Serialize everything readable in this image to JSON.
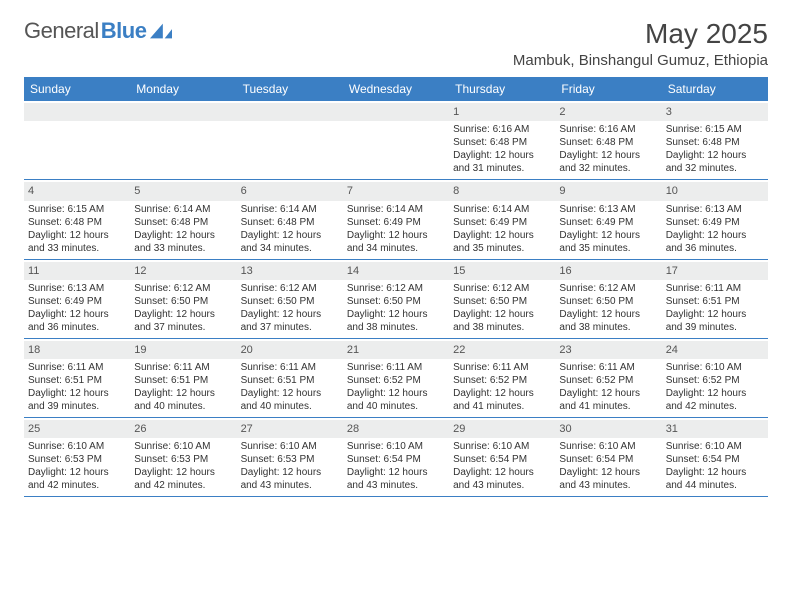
{
  "brand": {
    "part1": "General",
    "part2": "Blue"
  },
  "title": "May 2025",
  "location": "Mambuk, Binshangul Gumuz, Ethiopia",
  "day_labels": [
    "Sunday",
    "Monday",
    "Tuesday",
    "Wednesday",
    "Thursday",
    "Friday",
    "Saturday"
  ],
  "colors": {
    "header_bg": "#3b7fc4",
    "header_text": "#ffffff",
    "daynum_bg": "#eceded",
    "text": "#333333",
    "rule": "#3b7fc4"
  },
  "weeks": [
    [
      {
        "n": "",
        "sr": "",
        "ss": "",
        "dl1": "",
        "dl2": ""
      },
      {
        "n": "",
        "sr": "",
        "ss": "",
        "dl1": "",
        "dl2": ""
      },
      {
        "n": "",
        "sr": "",
        "ss": "",
        "dl1": "",
        "dl2": ""
      },
      {
        "n": "",
        "sr": "",
        "ss": "",
        "dl1": "",
        "dl2": ""
      },
      {
        "n": "1",
        "sr": "Sunrise: 6:16 AM",
        "ss": "Sunset: 6:48 PM",
        "dl1": "Daylight: 12 hours",
        "dl2": "and 31 minutes."
      },
      {
        "n": "2",
        "sr": "Sunrise: 6:16 AM",
        "ss": "Sunset: 6:48 PM",
        "dl1": "Daylight: 12 hours",
        "dl2": "and 32 minutes."
      },
      {
        "n": "3",
        "sr": "Sunrise: 6:15 AM",
        "ss": "Sunset: 6:48 PM",
        "dl1": "Daylight: 12 hours",
        "dl2": "and 32 minutes."
      }
    ],
    [
      {
        "n": "4",
        "sr": "Sunrise: 6:15 AM",
        "ss": "Sunset: 6:48 PM",
        "dl1": "Daylight: 12 hours",
        "dl2": "and 33 minutes."
      },
      {
        "n": "5",
        "sr": "Sunrise: 6:14 AM",
        "ss": "Sunset: 6:48 PM",
        "dl1": "Daylight: 12 hours",
        "dl2": "and 33 minutes."
      },
      {
        "n": "6",
        "sr": "Sunrise: 6:14 AM",
        "ss": "Sunset: 6:48 PM",
        "dl1": "Daylight: 12 hours",
        "dl2": "and 34 minutes."
      },
      {
        "n": "7",
        "sr": "Sunrise: 6:14 AM",
        "ss": "Sunset: 6:49 PM",
        "dl1": "Daylight: 12 hours",
        "dl2": "and 34 minutes."
      },
      {
        "n": "8",
        "sr": "Sunrise: 6:14 AM",
        "ss": "Sunset: 6:49 PM",
        "dl1": "Daylight: 12 hours",
        "dl2": "and 35 minutes."
      },
      {
        "n": "9",
        "sr": "Sunrise: 6:13 AM",
        "ss": "Sunset: 6:49 PM",
        "dl1": "Daylight: 12 hours",
        "dl2": "and 35 minutes."
      },
      {
        "n": "10",
        "sr": "Sunrise: 6:13 AM",
        "ss": "Sunset: 6:49 PM",
        "dl1": "Daylight: 12 hours",
        "dl2": "and 36 minutes."
      }
    ],
    [
      {
        "n": "11",
        "sr": "Sunrise: 6:13 AM",
        "ss": "Sunset: 6:49 PM",
        "dl1": "Daylight: 12 hours",
        "dl2": "and 36 minutes."
      },
      {
        "n": "12",
        "sr": "Sunrise: 6:12 AM",
        "ss": "Sunset: 6:50 PM",
        "dl1": "Daylight: 12 hours",
        "dl2": "and 37 minutes."
      },
      {
        "n": "13",
        "sr": "Sunrise: 6:12 AM",
        "ss": "Sunset: 6:50 PM",
        "dl1": "Daylight: 12 hours",
        "dl2": "and 37 minutes."
      },
      {
        "n": "14",
        "sr": "Sunrise: 6:12 AM",
        "ss": "Sunset: 6:50 PM",
        "dl1": "Daylight: 12 hours",
        "dl2": "and 38 minutes."
      },
      {
        "n": "15",
        "sr": "Sunrise: 6:12 AM",
        "ss": "Sunset: 6:50 PM",
        "dl1": "Daylight: 12 hours",
        "dl2": "and 38 minutes."
      },
      {
        "n": "16",
        "sr": "Sunrise: 6:12 AM",
        "ss": "Sunset: 6:50 PM",
        "dl1": "Daylight: 12 hours",
        "dl2": "and 38 minutes."
      },
      {
        "n": "17",
        "sr": "Sunrise: 6:11 AM",
        "ss": "Sunset: 6:51 PM",
        "dl1": "Daylight: 12 hours",
        "dl2": "and 39 minutes."
      }
    ],
    [
      {
        "n": "18",
        "sr": "Sunrise: 6:11 AM",
        "ss": "Sunset: 6:51 PM",
        "dl1": "Daylight: 12 hours",
        "dl2": "and 39 minutes."
      },
      {
        "n": "19",
        "sr": "Sunrise: 6:11 AM",
        "ss": "Sunset: 6:51 PM",
        "dl1": "Daylight: 12 hours",
        "dl2": "and 40 minutes."
      },
      {
        "n": "20",
        "sr": "Sunrise: 6:11 AM",
        "ss": "Sunset: 6:51 PM",
        "dl1": "Daylight: 12 hours",
        "dl2": "and 40 minutes."
      },
      {
        "n": "21",
        "sr": "Sunrise: 6:11 AM",
        "ss": "Sunset: 6:52 PM",
        "dl1": "Daylight: 12 hours",
        "dl2": "and 40 minutes."
      },
      {
        "n": "22",
        "sr": "Sunrise: 6:11 AM",
        "ss": "Sunset: 6:52 PM",
        "dl1": "Daylight: 12 hours",
        "dl2": "and 41 minutes."
      },
      {
        "n": "23",
        "sr": "Sunrise: 6:11 AM",
        "ss": "Sunset: 6:52 PM",
        "dl1": "Daylight: 12 hours",
        "dl2": "and 41 minutes."
      },
      {
        "n": "24",
        "sr": "Sunrise: 6:10 AM",
        "ss": "Sunset: 6:52 PM",
        "dl1": "Daylight: 12 hours",
        "dl2": "and 42 minutes."
      }
    ],
    [
      {
        "n": "25",
        "sr": "Sunrise: 6:10 AM",
        "ss": "Sunset: 6:53 PM",
        "dl1": "Daylight: 12 hours",
        "dl2": "and 42 minutes."
      },
      {
        "n": "26",
        "sr": "Sunrise: 6:10 AM",
        "ss": "Sunset: 6:53 PM",
        "dl1": "Daylight: 12 hours",
        "dl2": "and 42 minutes."
      },
      {
        "n": "27",
        "sr": "Sunrise: 6:10 AM",
        "ss": "Sunset: 6:53 PM",
        "dl1": "Daylight: 12 hours",
        "dl2": "and 43 minutes."
      },
      {
        "n": "28",
        "sr": "Sunrise: 6:10 AM",
        "ss": "Sunset: 6:54 PM",
        "dl1": "Daylight: 12 hours",
        "dl2": "and 43 minutes."
      },
      {
        "n": "29",
        "sr": "Sunrise: 6:10 AM",
        "ss": "Sunset: 6:54 PM",
        "dl1": "Daylight: 12 hours",
        "dl2": "and 43 minutes."
      },
      {
        "n": "30",
        "sr": "Sunrise: 6:10 AM",
        "ss": "Sunset: 6:54 PM",
        "dl1": "Daylight: 12 hours",
        "dl2": "and 43 minutes."
      },
      {
        "n": "31",
        "sr": "Sunrise: 6:10 AM",
        "ss": "Sunset: 6:54 PM",
        "dl1": "Daylight: 12 hours",
        "dl2": "and 44 minutes."
      }
    ]
  ]
}
